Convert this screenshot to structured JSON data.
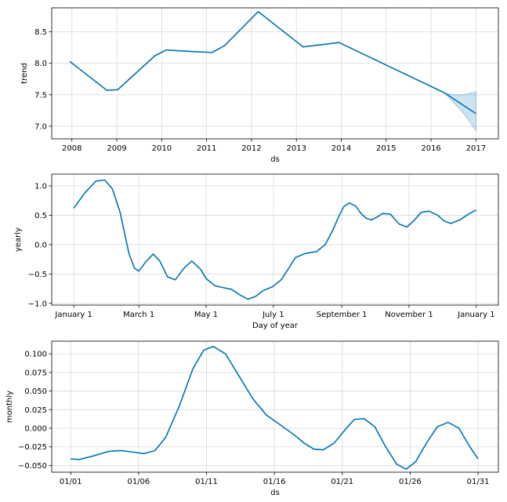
{
  "chart_data": [
    {
      "type": "line",
      "name": "trend",
      "xlabel": "ds",
      "ylabel": "trend",
      "grid": true,
      "color": "#0072B2",
      "band_color": "#0072B2",
      "xlim": [
        2007.55,
        2017.5
      ],
      "ylim": [
        6.8,
        8.88
      ],
      "xticks": [
        2008,
        2009,
        2010,
        2011,
        2012,
        2013,
        2014,
        2015,
        2016,
        2017
      ],
      "xtick_labels": [
        "2008",
        "2009",
        "2010",
        "2011",
        "2012",
        "2013",
        "2014",
        "2015",
        "2016",
        "2017"
      ],
      "yticks": [
        7.0,
        7.5,
        8.0,
        8.5
      ],
      "ytick_labels": [
        "7.0",
        "7.5",
        "8.0",
        "8.5"
      ],
      "x": [
        2007.95,
        2008.78,
        2009.02,
        2009.85,
        2010.1,
        2011.12,
        2011.4,
        2012.15,
        2013.15,
        2013.95,
        2016.3,
        2017.0
      ],
      "y": [
        8.03,
        7.57,
        7.58,
        8.12,
        8.21,
        8.17,
        8.28,
        8.82,
        8.26,
        8.33,
        7.53,
        7.2
      ],
      "band": {
        "x": [
          2016.3,
          2016.5,
          2016.75,
          2017.0
        ],
        "upper": [
          7.53,
          7.5,
          7.5,
          7.55
        ],
        "lower": [
          7.53,
          7.38,
          7.18,
          6.93
        ]
      }
    },
    {
      "type": "line",
      "name": "yearly",
      "xlabel": "Day of year",
      "ylabel": "yearly",
      "grid": true,
      "color": "#0072B2",
      "xlim": [
        -20,
        385
      ],
      "ylim": [
        -1.03,
        1.2
      ],
      "xticks": [
        0,
        59,
        120,
        181,
        243,
        304,
        365
      ],
      "xtick_labels": [
        "January 1",
        "March 1",
        "May 1",
        "July 1",
        "September 1",
        "November 1",
        "January 1"
      ],
      "yticks": [
        -1.0,
        -0.5,
        0.0,
        0.5,
        1.0
      ],
      "ytick_labels": [
        "−1.0",
        "−0.5",
        "0.0",
        "0.5",
        "1.0"
      ],
      "x": [
        0,
        10,
        20,
        28,
        35,
        42,
        50,
        55,
        59,
        65,
        72,
        78,
        85,
        92,
        100,
        107,
        115,
        120,
        128,
        135,
        143,
        150,
        158,
        165,
        172,
        180,
        188,
        195,
        201,
        210,
        220,
        228,
        235,
        240,
        245,
        250,
        256,
        260,
        265,
        270,
        275,
        280,
        287,
        295,
        302,
        308,
        315,
        322,
        330,
        336,
        342,
        350,
        358,
        365
      ],
      "y": [
        0.62,
        0.88,
        1.08,
        1.1,
        0.95,
        0.55,
        -0.15,
        -0.4,
        -0.45,
        -0.3,
        -0.16,
        -0.28,
        -0.55,
        -0.6,
        -0.4,
        -0.28,
        -0.42,
        -0.58,
        -0.7,
        -0.73,
        -0.76,
        -0.85,
        -0.93,
        -0.88,
        -0.78,
        -0.72,
        -0.6,
        -0.4,
        -0.22,
        -0.15,
        -0.12,
        0.0,
        0.25,
        0.47,
        0.65,
        0.71,
        0.65,
        0.54,
        0.45,
        0.42,
        0.47,
        0.53,
        0.52,
        0.35,
        0.3,
        0.4,
        0.55,
        0.57,
        0.5,
        0.4,
        0.36,
        0.42,
        0.52,
        0.59
      ]
    },
    {
      "type": "line",
      "name": "monthly",
      "xlabel": "ds",
      "ylabel": "monthly",
      "grid": true,
      "color": "#0072B2",
      "xlim": [
        -1.4,
        31.5
      ],
      "ylim": [
        -0.059,
        0.117
      ],
      "xticks": [
        0,
        5,
        10,
        15,
        20,
        25,
        30
      ],
      "xtick_labels": [
        "01/01",
        "01/06",
        "01/11",
        "01/16",
        "01/21",
        "01/26",
        "01/31"
      ],
      "yticks": [
        -0.05,
        -0.025,
        0.0,
        0.025,
        0.05,
        0.075,
        0.1
      ],
      "ytick_labels": [
        "−0.050",
        "−0.025",
        "0.000",
        "0.025",
        "0.050",
        "0.075",
        "0.100"
      ],
      "x": [
        0,
        0.6,
        1.5,
        2.8,
        3.7,
        4.6,
        5.4,
        6.2,
        7.0,
        8.0,
        9.0,
        9.8,
        10.5,
        11.4,
        12.4,
        13.4,
        14.4,
        15.4,
        16.4,
        17.2,
        17.9,
        18.6,
        19.4,
        20.3,
        20.9,
        21.6,
        22.4,
        23.2,
        24.0,
        24.7,
        25.4,
        26.2,
        27.0,
        27.8,
        28.6,
        29.4,
        30.0
      ],
      "y": [
        -0.041,
        -0.042,
        -0.038,
        -0.031,
        -0.03,
        -0.032,
        -0.034,
        -0.03,
        -0.012,
        0.03,
        0.08,
        0.105,
        0.11,
        0.1,
        0.07,
        0.04,
        0.018,
        0.005,
        -0.008,
        -0.02,
        -0.028,
        -0.029,
        -0.02,
        0.0,
        0.012,
        0.013,
        0.002,
        -0.025,
        -0.048,
        -0.055,
        -0.045,
        -0.02,
        0.002,
        0.008,
        0.0,
        -0.025,
        -0.041
      ]
    }
  ]
}
